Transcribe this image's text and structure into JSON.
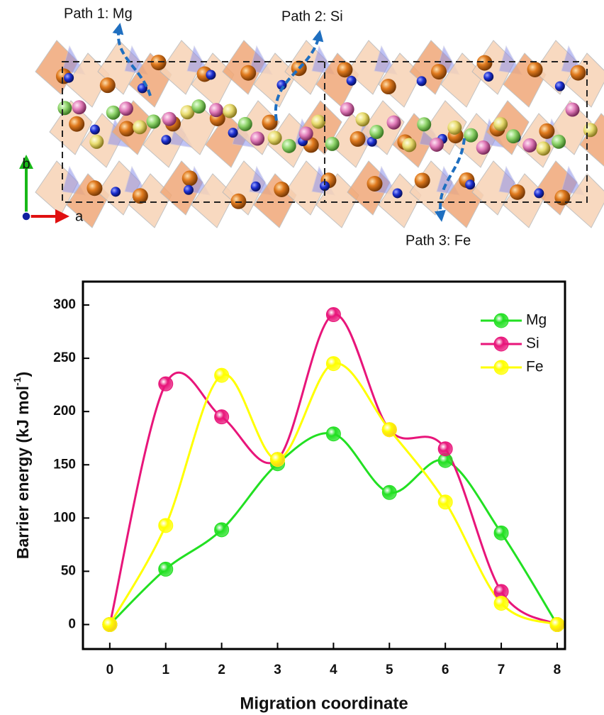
{
  "structure": {
    "paths": [
      "Path 1: Mg",
      "Path 2: Si",
      "Path 3: Fe"
    ],
    "axes": [
      "b",
      "a"
    ]
  },
  "chart_data": {
    "type": "line",
    "xlabel": "Migration coordinate",
    "ylabel": {
      "text": "Barrier energy (kJ mol",
      "sup": "-1",
      "end": ")"
    },
    "x": [
      0,
      1,
      2,
      3,
      4,
      5,
      6,
      7,
      8
    ],
    "series": [
      {
        "name": "Mg",
        "color": "#22e022",
        "values": [
          0,
          52,
          89,
          151,
          179,
          124,
          154,
          86,
          0
        ]
      },
      {
        "name": "Si",
        "color": "#e8157a",
        "values": [
          0,
          226,
          195,
          155,
          291,
          183,
          165,
          31,
          0
        ]
      },
      {
        "name": "Fe",
        "color": "#ffff00",
        "values": [
          0,
          93,
          234,
          155,
          245,
          183,
          115,
          20,
          0
        ]
      }
    ],
    "xlim": [
      -0.48,
      8.14
    ],
    "ylim": [
      -23,
      322
    ],
    "xticks": [
      0,
      1,
      2,
      3,
      4,
      5,
      6,
      7,
      8
    ],
    "yticks": [
      0,
      50,
      100,
      150,
      200,
      250,
      300
    ],
    "legend": "upper right",
    "smooth": true
  }
}
